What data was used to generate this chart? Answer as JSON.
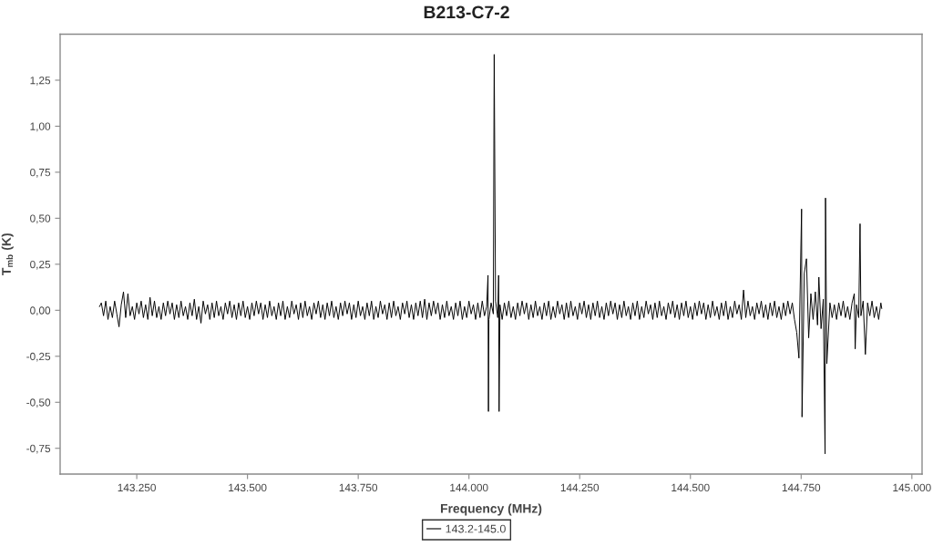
{
  "chart_data": {
    "type": "line",
    "title": "B213-C7-2",
    "xlabel": "Frequency (MHz)",
    "ylabel": "T$_{mb}$ (K)",
    "xlim": [
      143077,
      145023
    ],
    "ylim": [
      -0.89,
      1.5
    ],
    "xticks": [
      {
        "value": 143250,
        "label": "143.250"
      },
      {
        "value": 143500,
        "label": "143.500"
      },
      {
        "value": 143750,
        "label": "143.750"
      },
      {
        "value": 144000,
        "label": "144.000"
      },
      {
        "value": 144250,
        "label": "144.250"
      },
      {
        "value": 144500,
        "label": "144.500"
      },
      {
        "value": 144750,
        "label": "144.750"
      },
      {
        "value": 145000,
        "label": "145.000"
      }
    ],
    "yticks": [
      {
        "value": -0.75,
        "label": "-0,75"
      },
      {
        "value": -0.5,
        "label": "-0,50"
      },
      {
        "value": -0.25,
        "label": "-0,25"
      },
      {
        "value": 0,
        "label": "0,00"
      },
      {
        "value": 0.25,
        "label": "0,25"
      },
      {
        "value": 0.5,
        "label": "0,50"
      },
      {
        "value": 0.75,
        "label": "0,75"
      },
      {
        "value": 1.0,
        "label": "1,00"
      },
      {
        "value": 1.25,
        "label": "1,25"
      }
    ],
    "legend": "bottom",
    "series": [
      {
        "name": "143.2-145.0",
        "color": "#000000",
        "x": [
          143166,
          143170,
          143175,
          143180,
          143185,
          143190,
          143195,
          143200,
          143205,
          143210,
          143215,
          143220,
          143225,
          143230,
          143235,
          143240,
          143245,
          143250,
          143255,
          143260,
          143265,
          143270,
          143275,
          143280,
          143285,
          143290,
          143295,
          143300,
          143305,
          143310,
          143315,
          143320,
          143325,
          143330,
          143335,
          143340,
          143345,
          143350,
          143355,
          143360,
          143365,
          143370,
          143375,
          143380,
          143385,
          143390,
          143395,
          143400,
          143405,
          143410,
          143415,
          143420,
          143425,
          143430,
          143435,
          143440,
          143445,
          143450,
          143455,
          143460,
          143465,
          143470,
          143475,
          143480,
          143485,
          143490,
          143495,
          143500,
          143505,
          143510,
          143515,
          143520,
          143525,
          143530,
          143535,
          143540,
          143545,
          143550,
          143555,
          143560,
          143565,
          143570,
          143575,
          143580,
          143585,
          143590,
          143595,
          143600,
          143605,
          143610,
          143615,
          143620,
          143625,
          143630,
          143635,
          143640,
          143645,
          143650,
          143655,
          143660,
          143665,
          143670,
          143675,
          143680,
          143685,
          143690,
          143695,
          143700,
          143705,
          143710,
          143715,
          143720,
          143725,
          143730,
          143735,
          143740,
          143745,
          143750,
          143755,
          143760,
          143765,
          143770,
          143775,
          143780,
          143785,
          143790,
          143795,
          143800,
          143805,
          143810,
          143815,
          143820,
          143825,
          143830,
          143835,
          143840,
          143845,
          143850,
          143855,
          143860,
          143865,
          143870,
          143875,
          143880,
          143885,
          143890,
          143895,
          143900,
          143905,
          143910,
          143915,
          143920,
          143925,
          143930,
          143935,
          143940,
          143945,
          143950,
          143955,
          143960,
          143965,
          143970,
          143975,
          143980,
          143985,
          143990,
          143995,
          144000,
          144005,
          144010,
          144015,
          144020,
          144025,
          144030,
          144035,
          144040,
          144043,
          144044,
          144045,
          144050,
          144055,
          144057,
          144060,
          144065,
          144067,
          144068,
          144070,
          144075,
          144080,
          144085,
          144090,
          144095,
          144100,
          144105,
          144110,
          144115,
          144120,
          144125,
          144130,
          144135,
          144140,
          144145,
          144150,
          144155,
          144160,
          144165,
          144170,
          144175,
          144180,
          144185,
          144190,
          144195,
          144200,
          144205,
          144210,
          144215,
          144220,
          144225,
          144230,
          144235,
          144240,
          144245,
          144250,
          144255,
          144260,
          144265,
          144270,
          144275,
          144280,
          144285,
          144290,
          144295,
          144300,
          144305,
          144310,
          144315,
          144320,
          144325,
          144330,
          144335,
          144340,
          144345,
          144350,
          144355,
          144360,
          144365,
          144370,
          144375,
          144380,
          144385,
          144390,
          144395,
          144400,
          144405,
          144410,
          144415,
          144420,
          144425,
          144430,
          144435,
          144440,
          144445,
          144450,
          144455,
          144460,
          144465,
          144470,
          144475,
          144480,
          144485,
          144490,
          144495,
          144500,
          144505,
          144510,
          144515,
          144520,
          144525,
          144530,
          144535,
          144540,
          144545,
          144550,
          144555,
          144560,
          144565,
          144570,
          144575,
          144580,
          144585,
          144590,
          144595,
          144600,
          144605,
          144610,
          144615,
          144620,
          144625,
          144630,
          144635,
          144640,
          144645,
          144650,
          144655,
          144660,
          144665,
          144670,
          144675,
          144680,
          144685,
          144690,
          144695,
          144700,
          144705,
          144710,
          144715,
          144720,
          144725,
          144730,
          144735,
          144740,
          144745,
          144751,
          144752,
          144757,
          144762,
          144767,
          144772,
          144777,
          144782,
          144787,
          144790,
          144795,
          144800,
          144804,
          144805,
          144808,
          144815,
          144820,
          144825,
          144830,
          144835,
          144840,
          144845,
          144850,
          144855,
          144860,
          144865,
          144870,
          144872,
          144875,
          144880,
          144883,
          144885,
          144890,
          144895,
          144900,
          144905,
          144910,
          144915,
          144920,
          144925,
          144930,
          144932
        ],
        "values": [
          0.02,
          0.04,
          -0.03,
          0.05,
          -0.05,
          0.02,
          -0.04,
          0.05,
          -0.02,
          -0.09,
          0.03,
          0.1,
          -0.04,
          0.09,
          -0.03,
          0.02,
          -0.05,
          0.04,
          -0.02,
          0.05,
          -0.04,
          0.03,
          -0.05,
          0.07,
          -0.03,
          0.05,
          -0.04,
          0.02,
          -0.05,
          0.04,
          -0.03,
          0.05,
          -0.02,
          0.04,
          -0.05,
          0.03,
          -0.04,
          0.05,
          -0.03,
          0.02,
          -0.05,
          0.04,
          -0.03,
          0.06,
          -0.05,
          0.02,
          -0.07,
          0.05,
          -0.02,
          0.03,
          -0.05,
          0.04,
          -0.04,
          0.05,
          -0.03,
          0.02,
          -0.05,
          0.04,
          -0.02,
          0.05,
          -0.04,
          0.03,
          -0.05,
          0.04,
          -0.03,
          0.05,
          -0.04,
          0.02,
          -0.05,
          0.04,
          -0.03,
          0.05,
          -0.02,
          0.04,
          -0.05,
          0.03,
          -0.04,
          0.05,
          -0.03,
          0.02,
          -0.05,
          0.04,
          -0.03,
          0.05,
          -0.05,
          0.02,
          -0.04,
          0.05,
          -0.02,
          0.03,
          -0.05,
          0.04,
          -0.04,
          0.05,
          -0.03,
          0.02,
          -0.05,
          0.04,
          -0.02,
          0.05,
          -0.04,
          0.03,
          -0.05,
          0.04,
          -0.03,
          0.05,
          -0.04,
          0.02,
          -0.05,
          0.04,
          -0.03,
          0.05,
          -0.02,
          0.04,
          -0.05,
          0.03,
          -0.04,
          0.05,
          -0.03,
          0.02,
          -0.05,
          0.04,
          -0.03,
          0.05,
          -0.05,
          0.02,
          -0.04,
          0.05,
          -0.02,
          0.03,
          -0.05,
          0.04,
          -0.04,
          0.05,
          -0.03,
          0.02,
          -0.05,
          0.04,
          -0.02,
          0.05,
          -0.04,
          0.03,
          -0.05,
          0.04,
          -0.03,
          0.05,
          -0.04,
          0.06,
          -0.05,
          0.04,
          -0.03,
          0.05,
          -0.02,
          0.04,
          -0.05,
          0.03,
          -0.04,
          0.05,
          -0.03,
          0.02,
          -0.05,
          0.04,
          -0.03,
          0.05,
          -0.05,
          0.02,
          -0.04,
          0.05,
          -0.02,
          0.03,
          -0.05,
          0.04,
          -0.04,
          0.05,
          -0.03,
          0.02,
          0.19,
          -0.55,
          -0.05,
          0.04,
          -0.02,
          1.39,
          0.05,
          -0.04,
          0.19,
          -0.55,
          0.03,
          -0.05,
          0.04,
          -0.03,
          0.05,
          -0.04,
          0.02,
          -0.05,
          0.04,
          -0.03,
          0.05,
          -0.02,
          0.04,
          -0.05,
          0.03,
          -0.04,
          0.05,
          -0.03,
          0.02,
          -0.05,
          0.04,
          -0.03,
          0.05,
          -0.05,
          0.02,
          -0.04,
          0.05,
          -0.02,
          0.03,
          -0.05,
          0.04,
          -0.04,
          0.05,
          -0.03,
          0.02,
          -0.05,
          0.04,
          -0.02,
          0.05,
          -0.04,
          0.03,
          -0.05,
          0.04,
          -0.03,
          0.05,
          -0.04,
          0.02,
          -0.05,
          0.04,
          -0.03,
          0.05,
          -0.02,
          0.04,
          -0.05,
          0.03,
          -0.04,
          0.05,
          -0.03,
          0.02,
          -0.05,
          0.04,
          -0.03,
          0.05,
          -0.05,
          0.02,
          -0.04,
          0.05,
          -0.02,
          0.03,
          -0.05,
          0.04,
          -0.04,
          0.05,
          -0.03,
          0.02,
          -0.05,
          0.04,
          -0.02,
          0.05,
          -0.04,
          0.03,
          -0.05,
          0.04,
          -0.03,
          0.05,
          -0.04,
          0.02,
          -0.05,
          0.04,
          -0.03,
          0.05,
          -0.02,
          0.04,
          -0.05,
          0.03,
          -0.04,
          0.05,
          -0.03,
          0.02,
          -0.05,
          0.04,
          -0.03,
          0.05,
          -0.05,
          0.02,
          -0.04,
          0.05,
          -0.02,
          0.03,
          -0.05,
          0.11,
          -0.04,
          0.05,
          -0.03,
          0.02,
          -0.05,
          0.04,
          -0.02,
          0.05,
          -0.04,
          0.03,
          -0.05,
          0.04,
          -0.03,
          0.05,
          -0.04,
          0.02,
          -0.05,
          0.04,
          -0.03,
          0.05,
          -0.02,
          0.04,
          -0.05,
          -0.12,
          -0.26,
          0.55,
          -0.58,
          0.2,
          0.28,
          -0.15,
          0.09,
          -0.05,
          0.1,
          -0.08,
          0.18,
          -0.1,
          0.06,
          -0.78,
          0.61,
          -0.29,
          0.04,
          -0.04,
          0.03,
          -0.05,
          0.04,
          -0.03,
          0.05,
          -0.04,
          0.02,
          -0.05,
          0.04,
          0.09,
          -0.21,
          0.03,
          -0.04,
          0.47,
          -0.03,
          0.05,
          -0.24,
          0.04,
          -0.03,
          0.05,
          -0.04,
          0.02,
          -0.05,
          0.04,
          0.01
        ]
      }
    ]
  }
}
